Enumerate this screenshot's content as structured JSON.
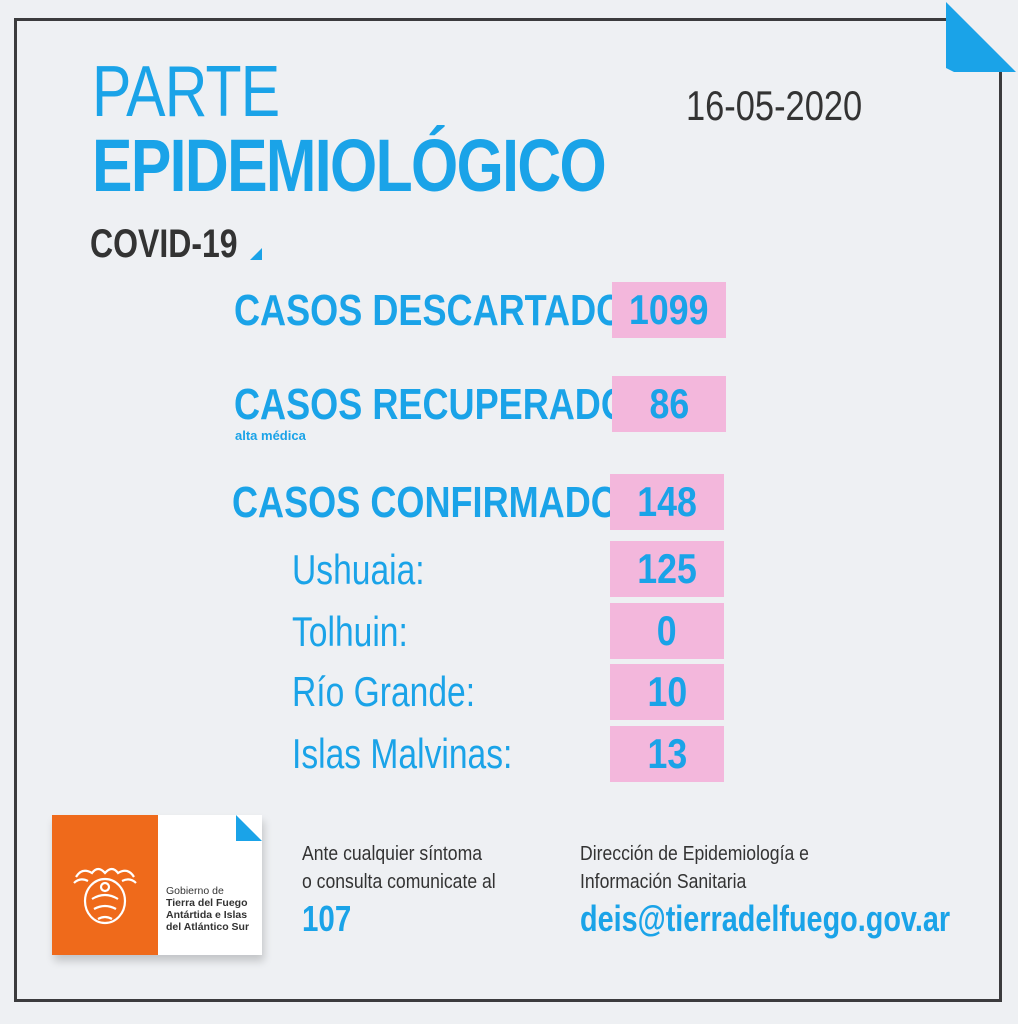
{
  "header": {
    "title_line1": "PARTE",
    "title_line2": "EPIDEMIOLÓGICO",
    "date": "16-05-2020",
    "subtitle": "COVID-19"
  },
  "stats": {
    "descartados": {
      "label": "CASOS DESCARTADOS:",
      "value": "1099"
    },
    "recuperados": {
      "label": "CASOS RECUPERADOS:",
      "note": "alta médica",
      "value": "86"
    },
    "confirmados": {
      "label": "CASOS CONFIRMADOS:",
      "value": "148"
    },
    "localidades": [
      {
        "label": "Ushuaia:",
        "value": "125"
      },
      {
        "label": "Tolhuin:",
        "value": "0"
      },
      {
        "label": "Río Grande:",
        "value": "10"
      },
      {
        "label": "Islas Malvinas:",
        "value": "13"
      }
    ]
  },
  "footer": {
    "logo_text": {
      "line1": "Gobierno de",
      "line2": "Tierra del Fuego",
      "line3": "Antártida e Islas",
      "line4": "del Atlántico Sur"
    },
    "contact_line1": "Ante cualquier síntoma",
    "contact_line2": "o consulta comunicate al",
    "phone": "107",
    "dept_line1": "Dirección de Epidemiología e",
    "dept_line2": "Información Sanitaria",
    "email": "deis@tierradelfuego.gov.ar"
  },
  "colors": {
    "accent": "#1aa3e8",
    "box": "#f3b7dc",
    "orange": "#ef6a1b",
    "text_dark": "#333333",
    "background": "#eef0f3"
  }
}
